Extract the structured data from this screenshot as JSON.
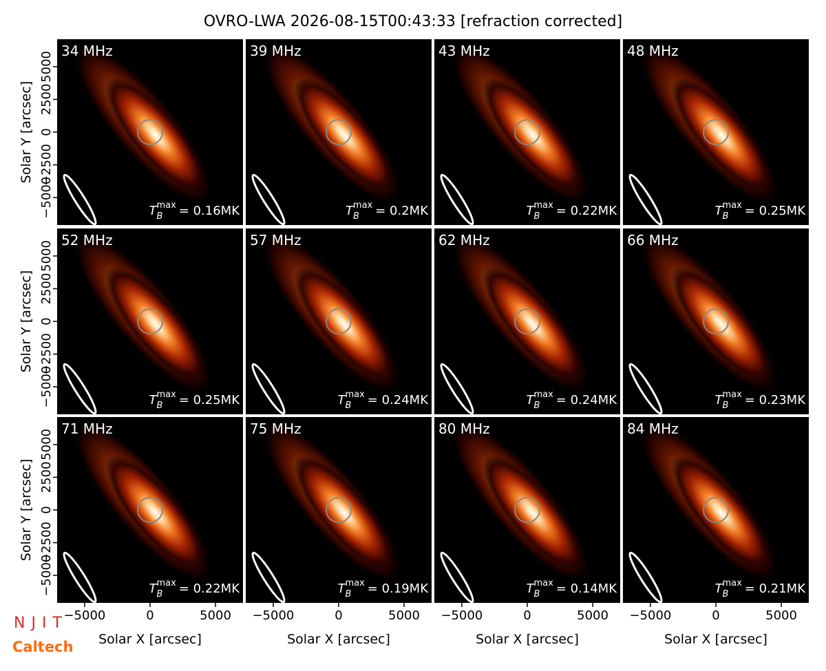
{
  "chart_data": {
    "type": "image-grid",
    "title": "OVRO-LWA 2026-08-15T00:43:33 [refraction corrected]",
    "xlabel": "Solar X [arcsec]",
    "ylabel": "Solar Y [arcsec]",
    "xlim": [
      -7100,
      7100
    ],
    "ylim": [
      -7100,
      7100
    ],
    "xticks": [
      {
        "value": -5000,
        "label": "−5000"
      },
      0,
      5000
    ],
    "yticks": [
      {
        "value": -5000,
        "label": "−5000"
      },
      {
        "value": -2500,
        "label": "−2500"
      },
      0,
      2500,
      5000
    ],
    "tb_symbol": "T",
    "tb_sub": "B",
    "tb_sup": "max",
    "panels": [
      {
        "title": "34 MHz",
        "annotation": "= 0.16MK"
      },
      {
        "title": "39 MHz",
        "annotation": "= 0.2MK"
      },
      {
        "title": "43 MHz",
        "annotation": "= 0.22MK"
      },
      {
        "title": "48 MHz",
        "annotation": "= 0.25MK"
      },
      {
        "title": "52 MHz",
        "annotation": "= 0.25MK"
      },
      {
        "title": "57 MHz",
        "annotation": "= 0.24MK"
      },
      {
        "title": "62 MHz",
        "annotation": "= 0.24MK"
      },
      {
        "title": "66 MHz",
        "annotation": "= 0.23MK"
      },
      {
        "title": "71 MHz",
        "annotation": "= 0.22MK"
      },
      {
        "title": "75 MHz",
        "annotation": "= 0.19MK"
      },
      {
        "title": "80 MHz",
        "annotation": "= 0.14MK"
      },
      {
        "title": "84 MHz",
        "annotation": "= 0.21MK"
      }
    ]
  },
  "logos": {
    "njit": "NJIT",
    "caltech": "Caltech"
  }
}
